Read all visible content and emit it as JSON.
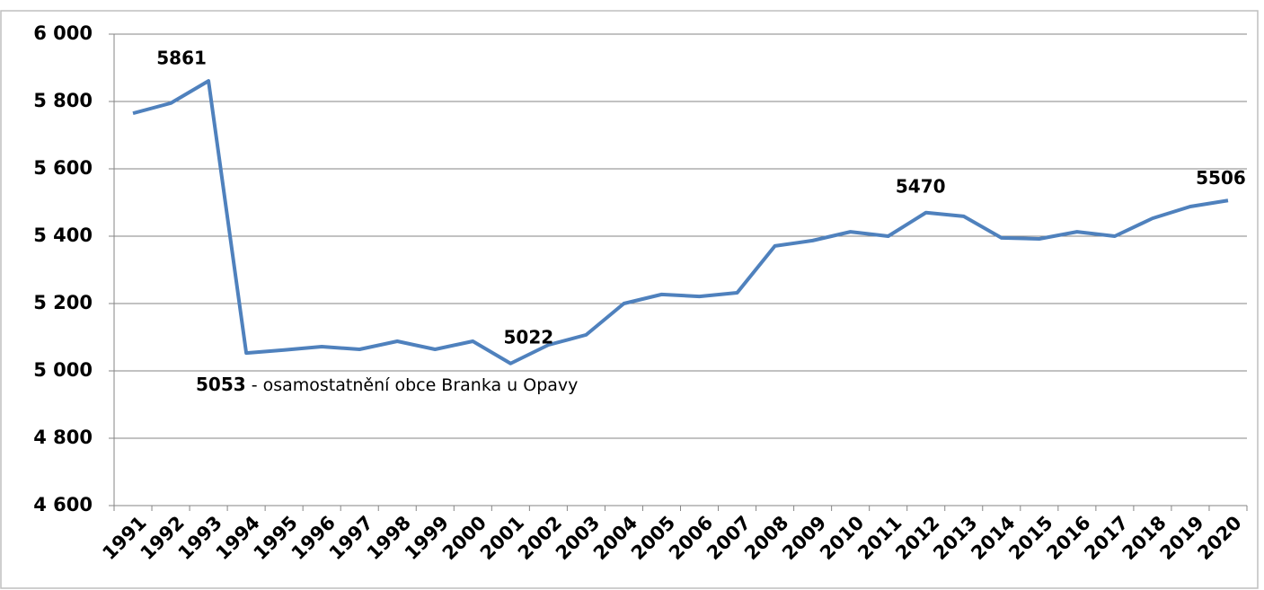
{
  "chart_data": {
    "type": "line",
    "categories": [
      "1991",
      "1992",
      "1993",
      "1994",
      "1995",
      "1996",
      "1997",
      "1998",
      "1999",
      "2000",
      "2001",
      "2002",
      "2003",
      "2004",
      "2005",
      "2006",
      "2007",
      "2008",
      "2009",
      "2010",
      "2011",
      "2012",
      "2013",
      "2014",
      "2015",
      "2016",
      "2017",
      "2018",
      "2019",
      "2020"
    ],
    "series": [
      {
        "color": "#4f81bd",
        "values": [
          5765,
          5795,
          5861,
          5053,
          5062,
          5072,
          5064,
          5088,
          5064,
          5088,
          5022,
          5077,
          5107,
          5200,
          5227,
          5221,
          5232,
          5371,
          5387,
          5413,
          5400,
          5470,
          5459,
          5395,
          5392,
          5413,
          5400,
          5453,
          5488,
          5506
        ],
        "value_labels": [
          null,
          null,
          "5861",
          "5053",
          null,
          null,
          null,
          null,
          null,
          null,
          "5022",
          null,
          null,
          null,
          null,
          null,
          null,
          null,
          null,
          null,
          null,
          "5470",
          null,
          null,
          null,
          null,
          null,
          null,
          null,
          "5506"
        ]
      }
    ],
    "annotation": " - osamostatnění obce Branka u Opavy",
    "ylim": [
      4600,
      6000
    ],
    "yticks": [
      {
        "value": 4600,
        "label": "4 600"
      },
      {
        "value": 4800,
        "label": "4 800"
      },
      {
        "value": 5000,
        "label": "5 000"
      },
      {
        "value": 5200,
        "label": "5 200"
      },
      {
        "value": 5400,
        "label": "5 400"
      },
      {
        "value": 5600,
        "label": "5 600"
      },
      {
        "value": 5800,
        "label": "5 800"
      },
      {
        "value": 6000,
        "label": "6 000"
      }
    ],
    "grid": true
  }
}
